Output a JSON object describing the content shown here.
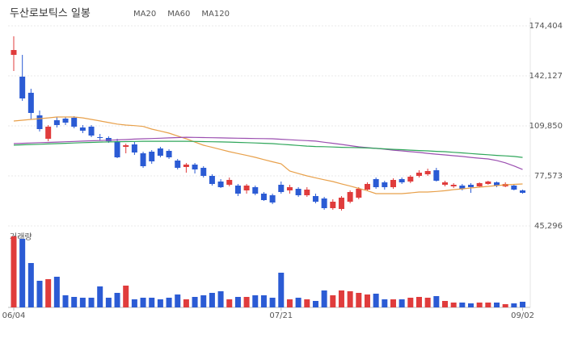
{
  "chart_data": {
    "type": "candlestick",
    "title": "두산로보틱스 일봉",
    "volume_label": "거래량",
    "categories": [
      "06/04",
      null,
      null,
      null,
      null,
      null,
      null,
      null,
      null,
      null,
      null,
      null,
      null,
      null,
      null,
      null,
      null,
      null,
      null,
      null,
      null,
      null,
      null,
      null,
      null,
      null,
      null,
      null,
      null,
      null,
      null,
      "07/21",
      null,
      null,
      null,
      null,
      null,
      null,
      null,
      null,
      null,
      null,
      null,
      null,
      null,
      null,
      null,
      null,
      null,
      null,
      null,
      null,
      null,
      null,
      null,
      null,
      null,
      null,
      null,
      "09/02"
    ],
    "open": [
      155662,
      141606,
      131195,
      116618,
      101521,
      113494,
      114535,
      115055,
      108808,
      109329,
      102562,
      102041,
      99959,
      96315,
      97877,
      92150,
      93191,
      95274,
      93712,
      87465,
      83300,
      84862,
      82780,
      77573,
      73929,
      71846,
      71326,
      68202,
      70285,
      66120,
      65079,
      71846,
      68202,
      69244,
      65079,
      64558,
      63000,
      56750,
      56229,
      60914,
      63517,
      68723,
      75491,
      73408,
      70285,
      75491,
      73929,
      77573,
      78615,
      81218,
      71846,
      70805,
      71326,
      71846,
      70805,
      72367,
      73408,
      70805,
      71326,
      68202
    ],
    "high": [
      167636,
      155662,
      133798,
      119742,
      110371,
      115576,
      115576,
      116097,
      110371,
      110371,
      104644,
      103082,
      101521,
      98397,
      99439,
      93191,
      94233,
      96315,
      94753,
      88506,
      85903,
      85903,
      83821,
      78615,
      75491,
      76532,
      72367,
      72367,
      71326,
      67161,
      66120,
      73929,
      71846,
      70285,
      70285,
      66120,
      64038,
      62476,
      64558,
      68202,
      70285,
      73408,
      76532,
      74450,
      76012,
      76532,
      78094,
      81218,
      82259,
      82780,
      74450,
      72888,
      72367,
      72888,
      73408,
      74450,
      73929,
      73408,
      72367,
      68723
    ],
    "low": [
      145250,
      125988,
      114015,
      106206,
      99959,
      108808,
      110371,
      108288,
      105164,
      102562,
      100480,
      98918,
      89027,
      92150,
      91109,
      82780,
      85382,
      89547,
      88506,
      81739,
      79656,
      79136,
      76532,
      71326,
      69764,
      70805,
      64558,
      66120,
      65079,
      61434,
      59352,
      66120,
      66120,
      64038,
      64038,
      59873,
      55708,
      55708,
      55187,
      59873,
      62476,
      67682,
      69244,
      68723,
      69244,
      72367,
      72888,
      76532,
      77573,
      73929,
      70805,
      69764,
      68202,
      66641,
      70285,
      71846,
      70285,
      70285,
      68202,
      66120
    ],
    "close": [
      158786,
      127550,
      118180,
      107768,
      109329,
      110371,
      111932,
      109329,
      106726,
      103603,
      102041,
      99959,
      89547,
      97356,
      92671,
      83821,
      86944,
      90589,
      89547,
      82780,
      84862,
      81739,
      77573,
      72367,
      70285,
      74970,
      66120,
      71326,
      66120,
      61955,
      60393,
      67161,
      70285,
      65079,
      68723,
      60914,
      56750,
      60914,
      63517,
      67161,
      69244,
      72367,
      70285,
      70285,
      74970,
      73408,
      77053,
      79656,
      80697,
      74450,
      73408,
      71846,
      69244,
      70285,
      72888,
      73929,
      71326,
      72367,
      68723,
      66641
    ],
    "volume": [
      88,
      85,
      55,
      33,
      35,
      38,
      15,
      13,
      12,
      12,
      26,
      12,
      18,
      27,
      10,
      12,
      12,
      10,
      12,
      16,
      10,
      13,
      15,
      18,
      20,
      10,
      13,
      13,
      15,
      15,
      12,
      43,
      10,
      12,
      10,
      8,
      21,
      15,
      21,
      20,
      18,
      16,
      17,
      10,
      10,
      10,
      12,
      13,
      12,
      14,
      8,
      6,
      6,
      5,
      6,
      6,
      6,
      4,
      5,
      7
    ],
    "vlim": [
      0,
      90
    ],
    "up_color": "#e03c3c",
    "down_color": "#2b5bd4",
    "series": [
      {
        "name": "MA20",
        "color": "#e8a04a",
        "values": [
          112973,
          113500,
          114000,
          114500,
          115000,
          115576,
          115576,
          115576,
          115000,
          114000,
          113000,
          112000,
          111000,
          110371,
          110000,
          109500,
          107768,
          106500,
          105164,
          103300,
          101521,
          99400,
          97356,
          96000,
          94600,
          93191,
          92000,
          90800,
          89547,
          88100,
          86700,
          85382,
          80697,
          79100,
          77573,
          76300,
          75100,
          73929,
          72400,
          71000,
          69500,
          68000,
          66120,
          66120,
          66120,
          66120,
          66600,
          67161,
          67161,
          67500,
          68000,
          68723,
          69200,
          69764,
          70300,
          70800,
          71326,
          71800,
          72100,
          72367
        ]
      },
      {
        "name": "MA60",
        "color": "#9b4fb0",
        "values": [
          98400,
          98600,
          98800,
          99000,
          99200,
          99400,
          99600,
          99800,
          100000,
          100200,
          100400,
          100600,
          100800,
          101000,
          101300,
          101500,
          101700,
          101900,
          102100,
          102300,
          102500,
          102400,
          102300,
          102200,
          102100,
          102000,
          101900,
          101800,
          101700,
          101600,
          101500,
          101200,
          100900,
          100600,
          100300,
          100000,
          99300,
          98600,
          97900,
          97100,
          96300,
          95800,
          95300,
          94800,
          94200,
          93700,
          93200,
          92700,
          92100,
          91600,
          91100,
          90600,
          90100,
          89500,
          89000,
          88500,
          87500,
          86000,
          84000,
          81700
        ]
      },
      {
        "name": "MA120",
        "color": "#2fa65a",
        "values": [
          97400,
          97600,
          97800,
          98000,
          98200,
          98400,
          98600,
          98800,
          99000,
          99200,
          99400,
          99500,
          99600,
          99700,
          99800,
          99900,
          99900,
          99900,
          99900,
          99900,
          99900,
          99800,
          99700,
          99600,
          99500,
          99400,
          99200,
          99000,
          98800,
          98600,
          98400,
          98000,
          97600,
          97200,
          96800,
          96500,
          96400,
          96200,
          96000,
          95900,
          95800,
          95600,
          95300,
          95000,
          94700,
          94500,
          94200,
          93900,
          93700,
          93400,
          93200,
          92800,
          92400,
          92000,
          91600,
          91200,
          90800,
          90500,
          90100,
          89500
        ]
      }
    ],
    "ylim": [
      45296,
      174404
    ],
    "yticks": [
      {
        "value": 45296,
        "label": "45,296"
      },
      {
        "value": 77573,
        "label": "77,573"
      },
      {
        "value": 109850,
        "label": "109,850"
      },
      {
        "value": 142127,
        "label": "142,127"
      },
      {
        "value": 174404,
        "label": "174,404"
      }
    ],
    "grid": true
  }
}
